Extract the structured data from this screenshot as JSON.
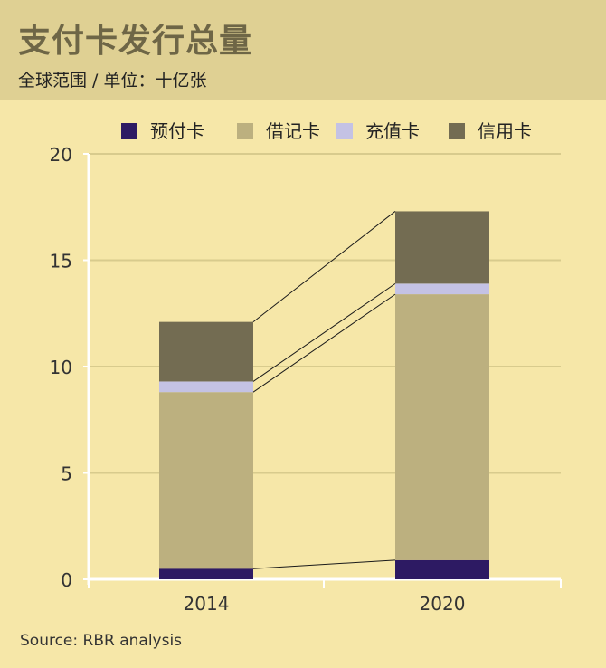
{
  "header": {
    "title": "支付卡发行总量",
    "subtitle": "全球范围 / 单位：十亿张"
  },
  "source": "Source: RBR analysis",
  "colors": {
    "background": "#f6e7a8",
    "header_band": "#dfd093",
    "prepaid": "#2d1a63",
    "debit": "#bcb07f",
    "charge": "#c4c2e4",
    "credit": "#736c52",
    "gridline": "#d8cb8d",
    "axis": "#ffffff"
  },
  "chart_data": {
    "type": "bar",
    "stacked": true,
    "categories": [
      "2014",
      "2020"
    ],
    "series": [
      {
        "name": "预付卡",
        "color": "#2d1a63",
        "values": [
          0.5,
          0.9
        ]
      },
      {
        "name": "借记卡",
        "color": "#bcb07f",
        "values": [
          8.3,
          12.5
        ]
      },
      {
        "name": "充值卡",
        "color": "#c4c2e4",
        "values": [
          0.5,
          0.5
        ]
      },
      {
        "name": "信用卡",
        "color": "#736c52",
        "values": [
          2.8,
          3.4
        ]
      }
    ],
    "ylim": [
      0,
      20
    ],
    "yticks": [
      0,
      5,
      10,
      15,
      20
    ],
    "grid": true,
    "legend_position": "top",
    "connector_lines": true
  }
}
